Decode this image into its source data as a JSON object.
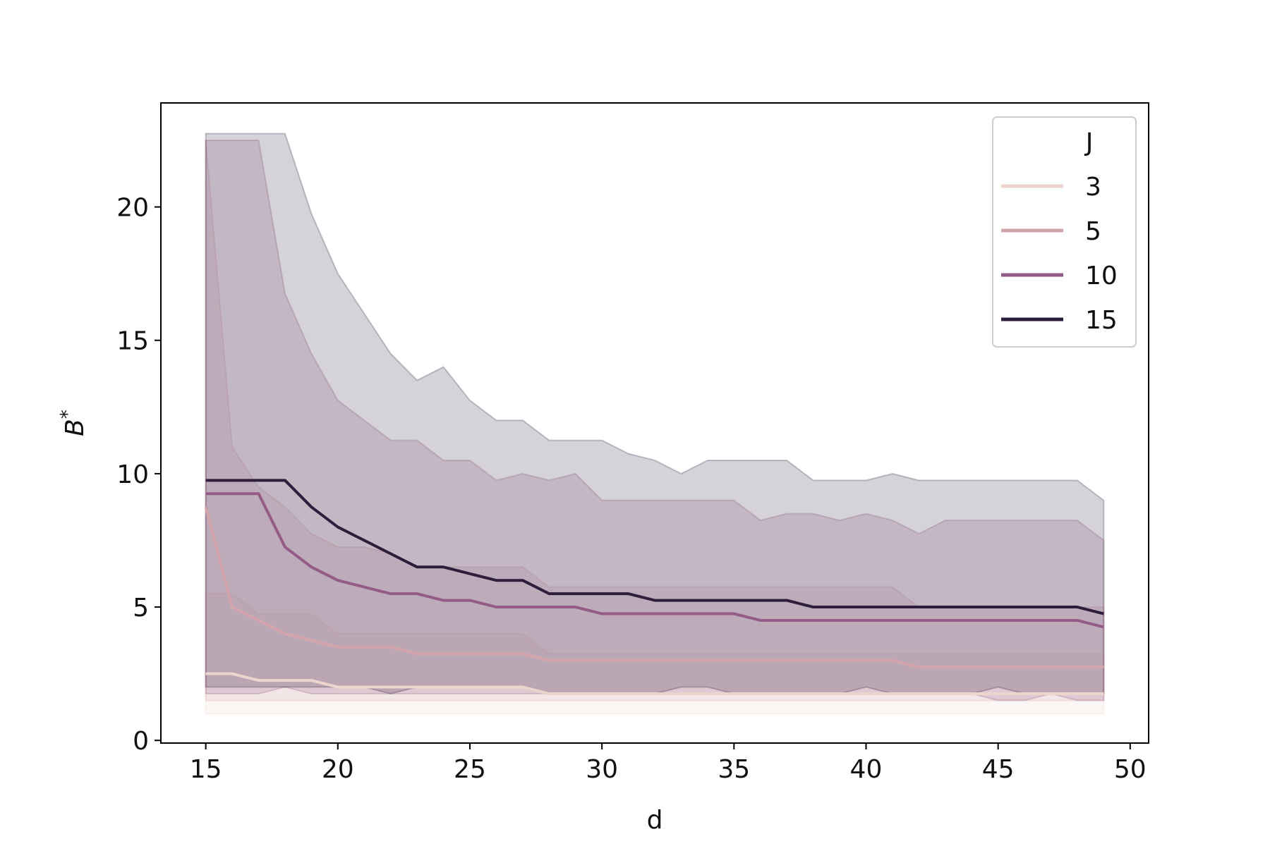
{
  "chart_data": {
    "type": "line",
    "title": "",
    "xlabel": "d",
    "ylabel": "B",
    "ylabel_superscript": "*",
    "xlim": [
      13.3,
      50.7
    ],
    "ylim": [
      -0.1,
      23.9
    ],
    "xticks": [
      15,
      20,
      25,
      30,
      35,
      40,
      45,
      50
    ],
    "yticks": [
      0,
      5,
      10,
      15,
      20
    ],
    "grid": false,
    "legend": {
      "title": "J",
      "placement": "top-right"
    },
    "x": [
      15,
      16,
      17,
      18,
      19,
      20,
      21,
      22,
      23,
      24,
      25,
      26,
      27,
      28,
      29,
      30,
      31,
      32,
      33,
      34,
      35,
      36,
      37,
      38,
      39,
      40,
      41,
      42,
      43,
      44,
      45,
      46,
      47,
      48,
      49
    ],
    "series": [
      {
        "name": "3",
        "color": "#ebd5cd",
        "values": [
          2.5,
          2.5,
          2.25,
          2.25,
          2.25,
          2.0,
          2.0,
          2.0,
          2.0,
          2.0,
          2.0,
          2.0,
          2.0,
          1.75,
          1.75,
          1.75,
          1.75,
          1.75,
          1.75,
          1.75,
          1.75,
          1.75,
          1.75,
          1.75,
          1.75,
          1.75,
          1.75,
          1.75,
          1.75,
          1.75,
          1.75,
          1.75,
          1.75,
          1.75,
          1.75
        ],
        "lower": [
          1.0,
          1.0,
          1.0,
          1.0,
          1.0,
          1.0,
          1.0,
          1.0,
          1.0,
          1.0,
          1.0,
          1.0,
          1.0,
          1.0,
          1.0,
          1.0,
          1.0,
          1.0,
          1.0,
          1.0,
          1.0,
          1.0,
          1.0,
          1.0,
          1.0,
          1.0,
          1.0,
          1.0,
          1.0,
          1.0,
          1.0,
          1.0,
          1.0,
          1.0,
          1.0
        ],
        "upper": [
          5.5,
          5.5,
          4.75,
          4.75,
          4.75,
          4.0,
          4.0,
          4.0,
          4.0,
          4.0,
          4.0,
          4.0,
          4.0,
          3.25,
          3.25,
          3.25,
          3.25,
          3.25,
          3.25,
          3.25,
          3.25,
          3.25,
          3.25,
          3.25,
          3.25,
          3.25,
          3.25,
          3.25,
          3.25,
          3.25,
          3.25,
          3.25,
          3.25,
          3.25,
          3.25
        ]
      },
      {
        "name": "5",
        "color": "#d3a5aa",
        "values": [
          8.75,
          5.0,
          4.5,
          4.0,
          3.75,
          3.5,
          3.5,
          3.5,
          3.25,
          3.25,
          3.25,
          3.25,
          3.25,
          3.0,
          3.0,
          3.0,
          3.0,
          3.0,
          3.0,
          3.0,
          3.0,
          3.0,
          3.0,
          3.0,
          3.0,
          3.0,
          3.0,
          2.75,
          2.75,
          2.75,
          2.75,
          2.75,
          2.75,
          2.75,
          2.75
        ],
        "lower": [
          1.5,
          1.5,
          1.5,
          1.5,
          1.5,
          1.5,
          1.5,
          1.5,
          1.5,
          1.5,
          1.5,
          1.5,
          1.5,
          1.5,
          1.5,
          1.5,
          1.5,
          1.5,
          1.5,
          1.5,
          1.5,
          1.5,
          1.5,
          1.5,
          1.5,
          1.5,
          1.5,
          1.5,
          1.5,
          1.5,
          1.5,
          1.5,
          1.5,
          1.5,
          1.5
        ],
        "upper": [
          22.5,
          11.0,
          9.5,
          8.75,
          7.75,
          7.25,
          7.25,
          7.0,
          6.5,
          6.5,
          6.5,
          6.5,
          6.5,
          5.75,
          5.75,
          5.75,
          5.75,
          5.75,
          5.75,
          5.75,
          5.75,
          5.75,
          5.75,
          5.75,
          5.75,
          5.75,
          5.75,
          5.0,
          5.0,
          5.0,
          5.0,
          5.0,
          5.0,
          5.0,
          5.0
        ]
      },
      {
        "name": "10",
        "color": "#945a88",
        "values": [
          9.25,
          9.25,
          9.25,
          7.25,
          6.5,
          6.0,
          5.75,
          5.5,
          5.5,
          5.25,
          5.25,
          5.0,
          5.0,
          5.0,
          5.0,
          4.75,
          4.75,
          4.75,
          4.75,
          4.75,
          4.75,
          4.5,
          4.5,
          4.5,
          4.5,
          4.5,
          4.5,
          4.5,
          4.5,
          4.5,
          4.5,
          4.5,
          4.5,
          4.5,
          4.25
        ],
        "lower": [
          1.75,
          1.75,
          1.75,
          2.0,
          1.75,
          1.75,
          1.75,
          1.75,
          1.75,
          1.75,
          1.75,
          1.75,
          1.75,
          1.75,
          1.75,
          1.75,
          1.75,
          1.75,
          1.75,
          1.75,
          1.75,
          1.75,
          1.75,
          1.75,
          1.75,
          1.75,
          1.75,
          1.75,
          1.75,
          1.75,
          1.5,
          1.5,
          1.75,
          1.5,
          1.5
        ],
        "upper": [
          22.5,
          22.5,
          22.5,
          16.75,
          14.5,
          12.75,
          12.0,
          11.25,
          11.25,
          10.5,
          10.5,
          9.75,
          10.0,
          9.75,
          10.0,
          9.0,
          9.0,
          9.0,
          9.0,
          9.0,
          9.0,
          8.25,
          8.5,
          8.5,
          8.25,
          8.5,
          8.25,
          7.75,
          8.25,
          8.25,
          8.25,
          8.25,
          8.25,
          8.25,
          7.5
        ]
      },
      {
        "name": "15",
        "color": "#2d1e3e",
        "values": [
          9.75,
          9.75,
          9.75,
          9.75,
          8.75,
          8.0,
          7.5,
          7.0,
          6.5,
          6.5,
          6.25,
          6.0,
          6.0,
          5.5,
          5.5,
          5.5,
          5.5,
          5.25,
          5.25,
          5.25,
          5.25,
          5.25,
          5.25,
          5.0,
          5.0,
          5.0,
          5.0,
          5.0,
          5.0,
          5.0,
          5.0,
          5.0,
          5.0,
          5.0,
          4.75
        ],
        "lower": [
          2.0,
          2.0,
          2.0,
          2.0,
          2.0,
          2.0,
          2.0,
          1.75,
          2.0,
          2.0,
          2.0,
          2.0,
          2.0,
          1.75,
          1.75,
          1.75,
          1.75,
          1.75,
          2.0,
          2.0,
          1.75,
          1.75,
          1.75,
          1.75,
          1.75,
          2.0,
          1.75,
          1.75,
          1.75,
          1.75,
          2.0,
          1.75,
          1.75,
          1.75,
          1.75
        ],
        "upper": [
          22.75,
          22.75,
          22.75,
          22.75,
          19.75,
          17.5,
          16.0,
          14.5,
          13.5,
          14.0,
          12.75,
          12.0,
          12.0,
          11.25,
          11.25,
          11.25,
          10.75,
          10.5,
          10.0,
          10.5,
          10.5,
          10.5,
          10.5,
          9.75,
          9.75,
          9.75,
          10.0,
          9.75,
          9.75,
          9.75,
          9.75,
          9.75,
          9.75,
          9.75,
          9.0
        ]
      }
    ]
  }
}
